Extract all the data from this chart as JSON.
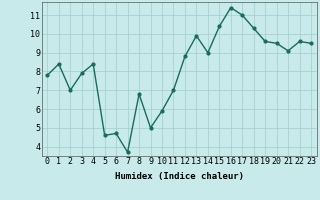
{
  "x": [
    0,
    1,
    2,
    3,
    4,
    5,
    6,
    7,
    8,
    9,
    10,
    11,
    12,
    13,
    14,
    15,
    16,
    17,
    18,
    19,
    20,
    21,
    22,
    23
  ],
  "y": [
    7.8,
    8.4,
    7.0,
    7.9,
    8.4,
    4.6,
    4.7,
    3.7,
    6.8,
    5.0,
    5.9,
    7.0,
    8.8,
    9.9,
    9.0,
    10.4,
    11.4,
    11.0,
    10.3,
    9.6,
    9.5,
    9.1,
    9.6,
    9.5
  ],
  "line_color": "#1a6b5a",
  "marker": "o",
  "marker_size": 2.0,
  "line_width": 1.0,
  "bg_color": "#c8eaea",
  "grid_color": "#a0cccc",
  "xlabel": "Humidex (Indice chaleur)",
  "ylabel": "",
  "xlim": [
    -0.5,
    23.5
  ],
  "ylim": [
    3.5,
    11.7
  ],
  "yticks": [
    4,
    5,
    6,
    7,
    8,
    9,
    10,
    11
  ],
  "xticks": [
    0,
    1,
    2,
    3,
    4,
    5,
    6,
    7,
    8,
    9,
    10,
    11,
    12,
    13,
    14,
    15,
    16,
    17,
    18,
    19,
    20,
    21,
    22,
    23
  ],
  "xlabel_fontsize": 6.5,
  "tick_fontsize": 6.0
}
